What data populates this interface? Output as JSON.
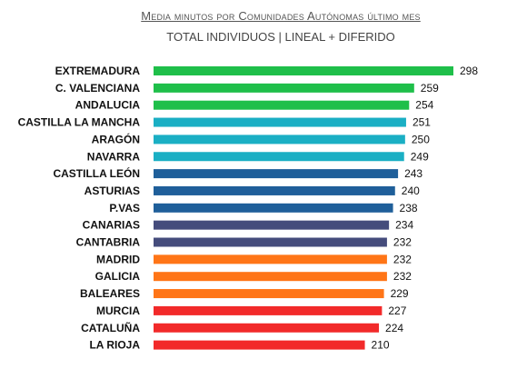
{
  "header": {
    "title": "Media minutos por Comunidades Autónomas último mes",
    "subtitle": "TOTAL INDIVIDUOS  | LINEAL + DIFERIDO"
  },
  "colors": {
    "green": "#1FBF4A",
    "teal": "#1AAFC4",
    "darkblue": "#1F5F9A",
    "slate": "#454C7C",
    "orange": "#FF7517",
    "red": "#F22A2A"
  },
  "chart_data": {
    "type": "bar",
    "orientation": "horizontal",
    "title": "Media minutos por Comunidades Autónomas último mes",
    "subtitle": "TOTAL INDIVIDUOS  | LINEAL + DIFERIDO",
    "xlabel": "",
    "ylabel": "",
    "grid": false,
    "legend": "none",
    "xlim": [
      0,
      298
    ],
    "categories": [
      "EXTREMADURA",
      "C. VALENCIANA",
      "ANDALUCIA",
      "CASTILLA LA MANCHA",
      "ARAGÓN",
      "NAVARRA",
      "CASTILLA LEÓN",
      "ASTURIAS",
      "P.VAS",
      "CANARIAS",
      "CANTABRIA",
      "MADRID",
      "GALICIA",
      "BALEARES",
      "MURCIA",
      "CATALUÑA",
      "LA RIOJA"
    ],
    "values": [
      298,
      259,
      254,
      251,
      250,
      249,
      243,
      240,
      238,
      234,
      232,
      232,
      232,
      229,
      227,
      224,
      210
    ],
    "value_labels": [
      "298",
      "259",
      "254",
      "251",
      "250",
      "249",
      "243",
      "240",
      "238",
      "234",
      "232",
      "232",
      "232",
      "229",
      "227",
      "224",
      "210"
    ],
    "bar_colors": [
      "#1FBF4A",
      "#1FBF4A",
      "#1FBF4A",
      "#1AAFC4",
      "#1AAFC4",
      "#1AAFC4",
      "#1F5F9A",
      "#1F5F9A",
      "#1F5F9A",
      "#454C7C",
      "#454C7C",
      "#FF7517",
      "#FF7517",
      "#FF7517",
      "#F22A2A",
      "#F22A2A",
      "#F22A2A"
    ]
  }
}
